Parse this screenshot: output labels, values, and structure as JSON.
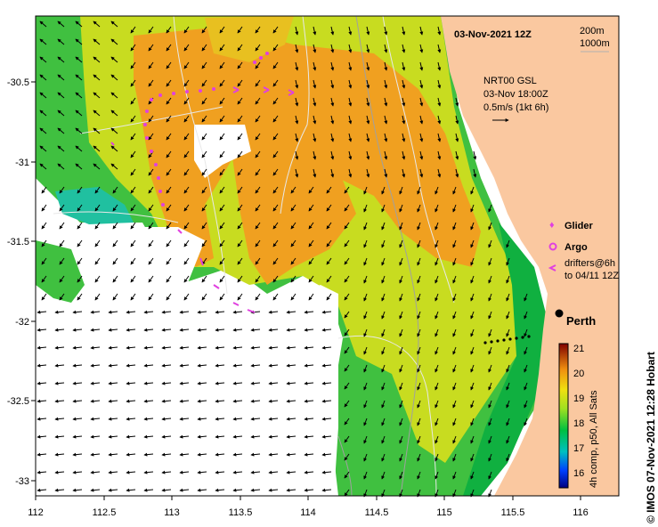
{
  "map": {
    "date_title": "03-Nov-2021 12Z",
    "depth_legend": [
      "200m",
      "1000m"
    ],
    "current_info": [
      "NRT00 GSL",
      "03-Nov 18:00Z",
      "0.5m/s (1kt 6h)"
    ],
    "city": "Perth",
    "legend": {
      "glider": "Glider",
      "argo": "Argo",
      "drifters_line1": "drifters@6h",
      "drifters_line2": "to 04/11 12Z"
    },
    "colorbar": {
      "ticks": [
        "21",
        "20",
        "19",
        "18",
        "17",
        "16"
      ],
      "label": "4h comp, p50, All Sats"
    },
    "credit": "© IMOS 07-Nov-2021 12:28 Hobart",
    "x_ticks": [
      "112",
      "112.5",
      "113",
      "113.5",
      "114",
      "114.5",
      "115",
      "115.5",
      "116"
    ],
    "y_ticks": [
      "-30.5",
      "-31",
      "-31.5",
      "-32",
      "-32.5",
      "-33"
    ],
    "colors": {
      "land": "#fac8a0",
      "sst_warm": "#f0a020",
      "sst_mid": "#c8dc20",
      "sst_cool": "#40c040",
      "glider": "#e040e0",
      "coast_green": "#10b040"
    }
  }
}
